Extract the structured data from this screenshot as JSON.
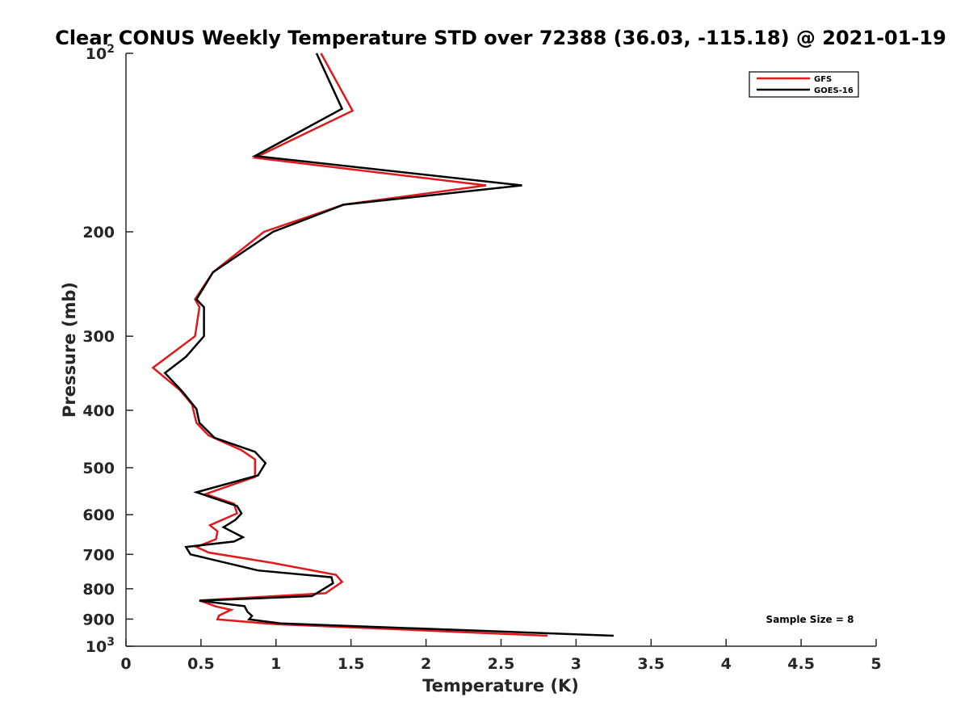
{
  "chart_data": {
    "type": "line",
    "title": "Clear CONUS Weekly Temperature STD over 72388 (36.03, -115.18) @ 2021-01-19",
    "xlabel": "Temperature (K)",
    "ylabel": "Pressure (mb)",
    "xlim": [
      0,
      5
    ],
    "ylim": [
      100,
      1000
    ],
    "y_scale": "log",
    "y_direction": "reversed (pressure increases downward)",
    "grid": false,
    "legend_placement": "top-right",
    "x_ticks": [
      0,
      0.5,
      1,
      1.5,
      2,
      2.5,
      3,
      3.5,
      4,
      4.5,
      5
    ],
    "x_tick_labels": [
      "0",
      "0.5",
      "1",
      "1.5",
      "2",
      "2.5",
      "3",
      "3.5",
      "4",
      "4.5",
      "5"
    ],
    "y_ticks": [
      {
        "value": 100,
        "base": "10",
        "exp": "2"
      },
      {
        "value": 200,
        "label": "200"
      },
      {
        "value": 300,
        "label": "300"
      },
      {
        "value": 400,
        "label": "400"
      },
      {
        "value": 500,
        "label": "500"
      },
      {
        "value": 600,
        "label": "600"
      },
      {
        "value": 700,
        "label": "700"
      },
      {
        "value": 800,
        "label": "800"
      },
      {
        "value": 900,
        "label": "900"
      },
      {
        "value": 1000,
        "base": "10",
        "exp": "3"
      }
    ],
    "annotation": "Sample Size = 8",
    "series": [
      {
        "name": "GFS",
        "color": "#e0191b",
        "points": [
          [
            1.3,
            100
          ],
          [
            1.51,
            125
          ],
          [
            0.86,
            150
          ],
          [
            2.4,
            167
          ],
          [
            1.45,
            180
          ],
          [
            0.92,
            200
          ],
          [
            0.58,
            234
          ],
          [
            0.46,
            260
          ],
          [
            0.49,
            268
          ],
          [
            0.46,
            300
          ],
          [
            0.18,
            339
          ],
          [
            0.36,
            370
          ],
          [
            0.44,
            391
          ],
          [
            0.47,
            420
          ],
          [
            0.55,
            441
          ],
          [
            0.77,
            467
          ],
          [
            0.86,
            484
          ],
          [
            0.86,
            518
          ],
          [
            0.53,
            554
          ],
          [
            0.72,
            575
          ],
          [
            0.74,
            597
          ],
          [
            0.56,
            625
          ],
          [
            0.61,
            640
          ],
          [
            0.6,
            660
          ],
          [
            0.47,
            680
          ],
          [
            0.55,
            695
          ],
          [
            0.97,
            723
          ],
          [
            1.4,
            758
          ],
          [
            1.44,
            779
          ],
          [
            1.33,
            814
          ],
          [
            0.49,
            837
          ],
          [
            0.6,
            857
          ],
          [
            0.7,
            868
          ],
          [
            0.62,
            888
          ],
          [
            0.61,
            901
          ],
          [
            0.88,
            913
          ],
          [
            1.0,
            918
          ],
          [
            2.81,
            960
          ]
        ]
      },
      {
        "name": "GOES-16",
        "color": "#000000",
        "points": [
          [
            1.27,
            100
          ],
          [
            1.44,
            124
          ],
          [
            0.86,
            149
          ],
          [
            2.64,
            167
          ],
          [
            1.45,
            180
          ],
          [
            0.98,
            200
          ],
          [
            0.58,
            234
          ],
          [
            0.47,
            260
          ],
          [
            0.52,
            268
          ],
          [
            0.52,
            300
          ],
          [
            0.4,
            325
          ],
          [
            0.26,
            346
          ],
          [
            0.38,
            373
          ],
          [
            0.47,
            398
          ],
          [
            0.49,
            420
          ],
          [
            0.59,
            445
          ],
          [
            0.86,
            470
          ],
          [
            0.93,
            491
          ],
          [
            0.88,
            515
          ],
          [
            0.47,
            550
          ],
          [
            0.74,
            580
          ],
          [
            0.77,
            597
          ],
          [
            0.73,
            612
          ],
          [
            0.65,
            630
          ],
          [
            0.78,
            655
          ],
          [
            0.72,
            666
          ],
          [
            0.4,
            680
          ],
          [
            0.43,
            700
          ],
          [
            0.88,
            745
          ],
          [
            1.37,
            765
          ],
          [
            1.38,
            783
          ],
          [
            1.24,
            823
          ],
          [
            0.49,
            838
          ],
          [
            0.79,
            856
          ],
          [
            0.81,
            875
          ],
          [
            0.84,
            889
          ],
          [
            0.82,
            901
          ],
          [
            1.03,
            915
          ],
          [
            3.25,
            960
          ]
        ]
      }
    ]
  }
}
